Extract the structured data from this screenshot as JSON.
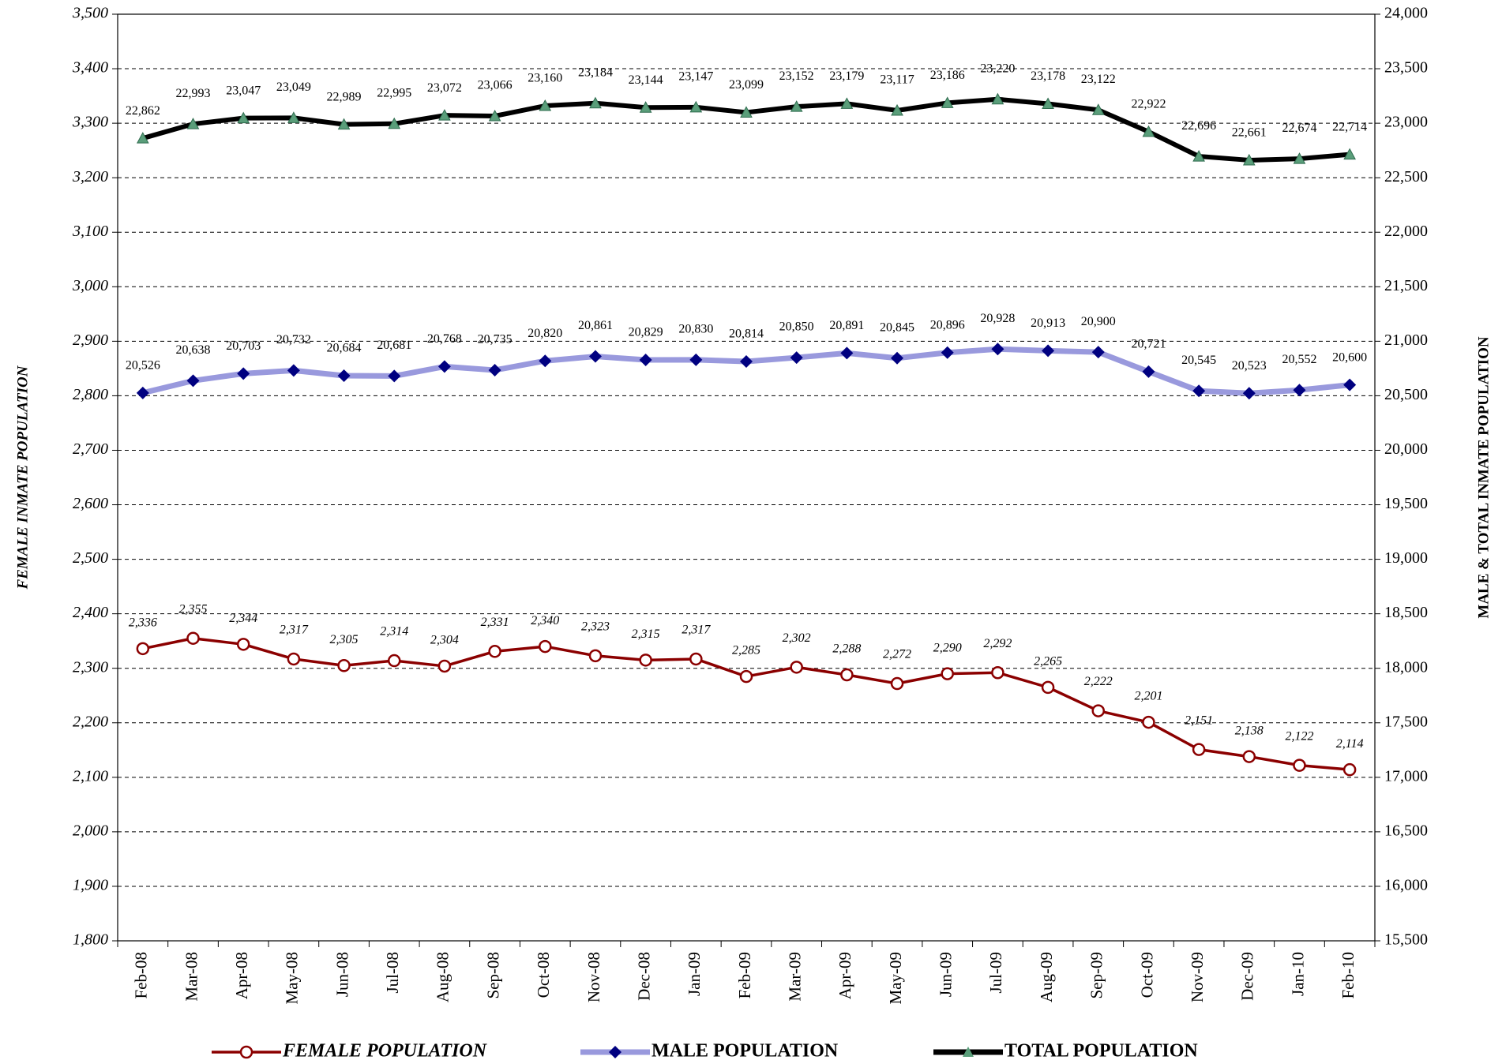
{
  "chart_data": {
    "type": "line",
    "y_label": "FEMALE INMATE POPULATION",
    "y2_label": "MALE & TOTAL INMATE POPULATION",
    "categories": [
      "Feb-08",
      "Mar-08",
      "Apr-08",
      "May-08",
      "Jun-08",
      "Jul-08",
      "Aug-08",
      "Sep-08",
      "Oct-08",
      "Nov-08",
      "Dec-08",
      "Jan-09",
      "Feb-09",
      "Mar-09",
      "Apr-09",
      "May-09",
      "Jun-09",
      "Jul-09",
      "Aug-09",
      "Sep-09",
      "Oct-09",
      "Nov-09",
      "Dec-09",
      "Jan-10",
      "Feb-10"
    ],
    "series": [
      {
        "name": "FEMALE POPULATION",
        "color": "#8b0000",
        "marker": "circle",
        "marker_color": "#ffffff",
        "axis": "y",
        "values": [
          2336,
          2355,
          2344,
          2317,
          2305,
          2314,
          2304,
          2331,
          2340,
          2323,
          2315,
          2317,
          2285,
          2302,
          2288,
          2272,
          2290,
          2292,
          2265,
          2222,
          2201,
          2151,
          2138,
          2122,
          2114
        ],
        "value_labels": [
          "2,336",
          "2,355",
          "2,344",
          "2,317",
          "2,305",
          "2,314",
          "2,304",
          "2,331",
          "2,340",
          "2,323",
          "2,315",
          "2,317",
          "2,285",
          "2,302",
          "2,288",
          "2,272",
          "2,290",
          "2,292",
          "2,265",
          "2,222",
          "2,201",
          "2,151",
          "2,138",
          "2,122",
          "2,114"
        ]
      },
      {
        "name": "MALE POPULATION",
        "color": "#9999dd",
        "marker": "diamond",
        "marker_color": "#000080",
        "axis": "y2",
        "values": [
          20526,
          20638,
          20703,
          20732,
          20684,
          20681,
          20768,
          20735,
          20820,
          20861,
          20829,
          20830,
          20814,
          20850,
          20891,
          20845,
          20896,
          20928,
          20913,
          20900,
          20721,
          20545,
          20523,
          20552,
          20600
        ],
        "value_labels": [
          "20,526",
          "20,638",
          "20,703",
          "20,732",
          "20,684",
          "20,681",
          "20,768",
          "20,735",
          "20,820",
          "20,861",
          "20,829",
          "20,830",
          "20,814",
          "20,850",
          "20,891",
          "20,845",
          "20,896",
          "20,928",
          "20,913",
          "20,900",
          "20,721",
          "20,545",
          "20,523",
          "20,552",
          "20,600"
        ]
      },
      {
        "name": "TOTAL POPULATION",
        "color": "#000000",
        "marker": "triangle",
        "marker_color": "#5a9e7a",
        "axis": "y2",
        "values": [
          22862,
          22993,
          23047,
          23049,
          22989,
          22995,
          23072,
          23066,
          23160,
          23184,
          23144,
          23147,
          23099,
          23152,
          23179,
          23117,
          23186,
          23220,
          23178,
          23122,
          22922,
          22696,
          22661,
          22674,
          22714
        ],
        "value_labels": [
          "22,862",
          "22,993",
          "23,047",
          "23,049",
          "22,989",
          "22,995",
          "23,072",
          "23,066",
          "23,160",
          "23,184",
          "23,144",
          "23,147",
          "23,099",
          "23,152",
          "23,179",
          "23,117",
          "23,186",
          "23,220",
          "23,178",
          "23,122",
          "22,922",
          "22,696",
          "22,661",
          "22,674",
          "22,714"
        ]
      }
    ],
    "ylim": [
      1800,
      3500
    ],
    "yticks": [
      {
        "value": 1800,
        "label": "1,800"
      },
      {
        "value": 1900,
        "label": "1,900"
      },
      {
        "value": 2000,
        "label": "2,000"
      },
      {
        "value": 2100,
        "label": "2,100"
      },
      {
        "value": 2200,
        "label": "2,200"
      },
      {
        "value": 2300,
        "label": "2,300"
      },
      {
        "value": 2400,
        "label": "2,400"
      },
      {
        "value": 2500,
        "label": "2,500"
      },
      {
        "value": 2600,
        "label": "2,600"
      },
      {
        "value": 2700,
        "label": "2,700"
      },
      {
        "value": 2800,
        "label": "2,800"
      },
      {
        "value": 2900,
        "label": "2,900"
      },
      {
        "value": 3000,
        "label": "3,000"
      },
      {
        "value": 3100,
        "label": "3,100"
      },
      {
        "value": 3200,
        "label": "3,200"
      },
      {
        "value": 3300,
        "label": "3,300"
      },
      {
        "value": 3400,
        "label": "3,400"
      },
      {
        "value": 3500,
        "label": "3,500"
      }
    ],
    "y2lim": [
      15500,
      24000
    ],
    "y2ticks": [
      {
        "value": 15500,
        "label": "15,500"
      },
      {
        "value": 16000,
        "label": "16,000"
      },
      {
        "value": 16500,
        "label": "16,500"
      },
      {
        "value": 17000,
        "label": "17,000"
      },
      {
        "value": 17500,
        "label": "17,500"
      },
      {
        "value": 18000,
        "label": "18,000"
      },
      {
        "value": 18500,
        "label": "18,500"
      },
      {
        "value": 19000,
        "label": "19,000"
      },
      {
        "value": 19500,
        "label": "19,500"
      },
      {
        "value": 20000,
        "label": "20,000"
      },
      {
        "value": 20500,
        "label": "20,500"
      },
      {
        "value": 21000,
        "label": "21,000"
      },
      {
        "value": 21500,
        "label": "21,500"
      },
      {
        "value": 22000,
        "label": "22,000"
      },
      {
        "value": 22500,
        "label": "22,500"
      },
      {
        "value": 23000,
        "label": "23,000"
      },
      {
        "value": 23500,
        "label": "23,500"
      },
      {
        "value": 24000,
        "label": "24,000"
      }
    ],
    "grid": true
  }
}
